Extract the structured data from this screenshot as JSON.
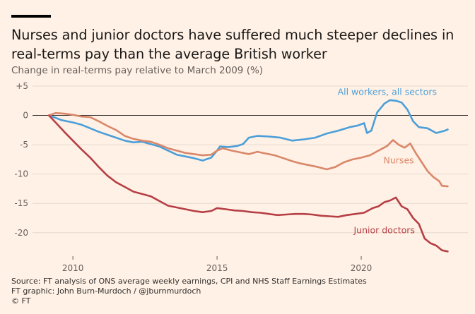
{
  "header": {
    "title": "Nurses and junior doctors have suffered much steeper declines in real-terms pay than the average British worker",
    "subtitle": "Change in real-terms pay relative to March 2009 (%)"
  },
  "footer": {
    "source": "Source: FT analysis of ONS average weekly earnings, CPI and NHS Staff Earnings Estimates",
    "credit": "FT graphic: John Burn-Murdoch / @jburnmurdoch",
    "copyright": "© FT"
  },
  "colors": {
    "background": "#fff1e5",
    "all_workers": "#4b9fd9",
    "nurses": "#d9876a",
    "junior_doctors": "#b63f46",
    "zero_line": "#33302e",
    "gridline": "#e6d9ce"
  },
  "chart_data": {
    "type": "line",
    "y_tick_labels": [
      "+5",
      "0",
      "-5",
      "-10",
      "-15",
      "-20"
    ],
    "y_ticks": [
      5,
      0,
      -5,
      -10,
      -15,
      -20
    ],
    "x_tick_labels": [
      "2010",
      "2015",
      "2020"
    ],
    "x_ticks": [
      2010,
      2015,
      2020
    ],
    "xlim": [
      2008.6,
      2023.7
    ],
    "ylim": [
      -24,
      5
    ],
    "grid": true,
    "series": [
      {
        "name": "All workers, all sectors",
        "key": "all_workers",
        "label_year": 2020.9,
        "label_value": 4,
        "points": [
          [
            2009.17,
            0
          ],
          [
            2009.4,
            -0.4
          ],
          [
            2009.6,
            -0.8
          ],
          [
            2009.8,
            -1.0
          ],
          [
            2010.0,
            -1.2
          ],
          [
            2010.3,
            -1.6
          ],
          [
            2010.6,
            -2.2
          ],
          [
            2010.9,
            -2.8
          ],
          [
            2011.2,
            -3.3
          ],
          [
            2011.5,
            -3.8
          ],
          [
            2011.8,
            -4.3
          ],
          [
            2012.1,
            -4.6
          ],
          [
            2012.4,
            -4.5
          ],
          [
            2012.7,
            -4.9
          ],
          [
            2013.0,
            -5.3
          ],
          [
            2013.3,
            -6.0
          ],
          [
            2013.6,
            -6.7
          ],
          [
            2013.9,
            -7.0
          ],
          [
            2014.2,
            -7.3
          ],
          [
            2014.5,
            -7.7
          ],
          [
            2014.8,
            -7.2
          ],
          [
            2015.0,
            -6.0
          ],
          [
            2015.1,
            -5.3
          ],
          [
            2015.4,
            -5.4
          ],
          [
            2015.7,
            -5.2
          ],
          [
            2015.9,
            -4.9
          ],
          [
            2016.1,
            -3.8
          ],
          [
            2016.4,
            -3.5
          ],
          [
            2016.8,
            -3.6
          ],
          [
            2017.2,
            -3.8
          ],
          [
            2017.6,
            -4.3
          ],
          [
            2018.0,
            -4.1
          ],
          [
            2018.4,
            -3.8
          ],
          [
            2018.8,
            -3.1
          ],
          [
            2019.2,
            -2.6
          ],
          [
            2019.6,
            -2.0
          ],
          [
            2019.9,
            -1.7
          ],
          [
            2020.1,
            -1.3
          ],
          [
            2020.2,
            -3.0
          ],
          [
            2020.35,
            -2.6
          ],
          [
            2020.55,
            0.5
          ],
          [
            2020.8,
            2.0
          ],
          [
            2021.0,
            2.6
          ],
          [
            2021.2,
            2.5
          ],
          [
            2021.4,
            2.2
          ],
          [
            2021.6,
            1.0
          ],
          [
            2021.8,
            -1.0
          ],
          [
            2022.0,
            -2.0
          ],
          [
            2022.3,
            -2.2
          ],
          [
            2022.6,
            -3.0
          ],
          [
            2022.9,
            -2.6
          ],
          [
            2023.0,
            -2.4
          ]
        ]
      },
      {
        "name": "Nurses",
        "key": "nurses",
        "label_year": 2021.3,
        "label_value": -7.7,
        "points": [
          [
            2009.17,
            0
          ],
          [
            2009.4,
            0.4
          ],
          [
            2009.7,
            0.3
          ],
          [
            2010.0,
            0.1
          ],
          [
            2010.3,
            -0.2
          ],
          [
            2010.6,
            -0.3
          ],
          [
            2010.9,
            -1.0
          ],
          [
            2011.2,
            -1.8
          ],
          [
            2011.5,
            -2.5
          ],
          [
            2011.8,
            -3.5
          ],
          [
            2012.1,
            -4.0
          ],
          [
            2012.4,
            -4.3
          ],
          [
            2012.7,
            -4.5
          ],
          [
            2013.0,
            -5.0
          ],
          [
            2013.3,
            -5.6
          ],
          [
            2013.6,
            -6.0
          ],
          [
            2013.9,
            -6.4
          ],
          [
            2014.2,
            -6.6
          ],
          [
            2014.5,
            -6.8
          ],
          [
            2014.8,
            -6.7
          ],
          [
            2015.0,
            -6.0
          ],
          [
            2015.2,
            -5.6
          ],
          [
            2015.5,
            -6.0
          ],
          [
            2015.8,
            -6.3
          ],
          [
            2016.1,
            -6.6
          ],
          [
            2016.4,
            -6.2
          ],
          [
            2016.7,
            -6.5
          ],
          [
            2017.0,
            -6.8
          ],
          [
            2017.3,
            -7.3
          ],
          [
            2017.6,
            -7.8
          ],
          [
            2017.9,
            -8.2
          ],
          [
            2018.2,
            -8.5
          ],
          [
            2018.5,
            -8.8
          ],
          [
            2018.8,
            -9.2
          ],
          [
            2019.1,
            -8.8
          ],
          [
            2019.4,
            -8.0
          ],
          [
            2019.7,
            -7.5
          ],
          [
            2020.0,
            -7.2
          ],
          [
            2020.3,
            -6.8
          ],
          [
            2020.6,
            -6.0
          ],
          [
            2020.9,
            -5.2
          ],
          [
            2021.1,
            -4.2
          ],
          [
            2021.3,
            -5.0
          ],
          [
            2021.5,
            -5.5
          ],
          [
            2021.7,
            -4.8
          ],
          [
            2021.9,
            -6.5
          ],
          [
            2022.1,
            -8.0
          ],
          [
            2022.3,
            -9.5
          ],
          [
            2022.5,
            -10.5
          ],
          [
            2022.7,
            -11.2
          ],
          [
            2022.8,
            -12.0
          ],
          [
            2023.0,
            -12.1
          ]
        ]
      },
      {
        "name": "Junior doctors",
        "key": "junior_doctors",
        "label_year": 2020.8,
        "label_value": -19.6,
        "points": [
          [
            2009.17,
            0
          ],
          [
            2009.4,
            -1.2
          ],
          [
            2009.7,
            -2.8
          ],
          [
            2010.0,
            -4.3
          ],
          [
            2010.3,
            -5.8
          ],
          [
            2010.6,
            -7.2
          ],
          [
            2010.9,
            -8.8
          ],
          [
            2011.2,
            -10.3
          ],
          [
            2011.5,
            -11.4
          ],
          [
            2011.8,
            -12.2
          ],
          [
            2012.1,
            -13.0
          ],
          [
            2012.4,
            -13.4
          ],
          [
            2012.7,
            -13.8
          ],
          [
            2013.0,
            -14.6
          ],
          [
            2013.3,
            -15.4
          ],
          [
            2013.6,
            -15.7
          ],
          [
            2013.9,
            -16.0
          ],
          [
            2014.2,
            -16.3
          ],
          [
            2014.5,
            -16.5
          ],
          [
            2014.8,
            -16.3
          ],
          [
            2015.0,
            -15.8
          ],
          [
            2015.3,
            -16.0
          ],
          [
            2015.6,
            -16.2
          ],
          [
            2015.9,
            -16.3
          ],
          [
            2016.2,
            -16.5
          ],
          [
            2016.5,
            -16.6
          ],
          [
            2016.8,
            -16.8
          ],
          [
            2017.1,
            -17.0
          ],
          [
            2017.4,
            -16.9
          ],
          [
            2017.7,
            -16.8
          ],
          [
            2018.0,
            -16.8
          ],
          [
            2018.3,
            -16.9
          ],
          [
            2018.6,
            -17.1
          ],
          [
            2018.9,
            -17.2
          ],
          [
            2019.2,
            -17.3
          ],
          [
            2019.5,
            -17.0
          ],
          [
            2019.8,
            -16.8
          ],
          [
            2020.1,
            -16.6
          ],
          [
            2020.4,
            -15.8
          ],
          [
            2020.6,
            -15.5
          ],
          [
            2020.8,
            -14.8
          ],
          [
            2021.0,
            -14.5
          ],
          [
            2021.2,
            -14.0
          ],
          [
            2021.4,
            -15.5
          ],
          [
            2021.6,
            -16.0
          ],
          [
            2021.8,
            -17.5
          ],
          [
            2022.0,
            -18.5
          ],
          [
            2022.2,
            -21.0
          ],
          [
            2022.4,
            -21.8
          ],
          [
            2022.6,
            -22.2
          ],
          [
            2022.8,
            -23.0
          ],
          [
            2023.0,
            -23.2
          ]
        ]
      }
    ]
  }
}
